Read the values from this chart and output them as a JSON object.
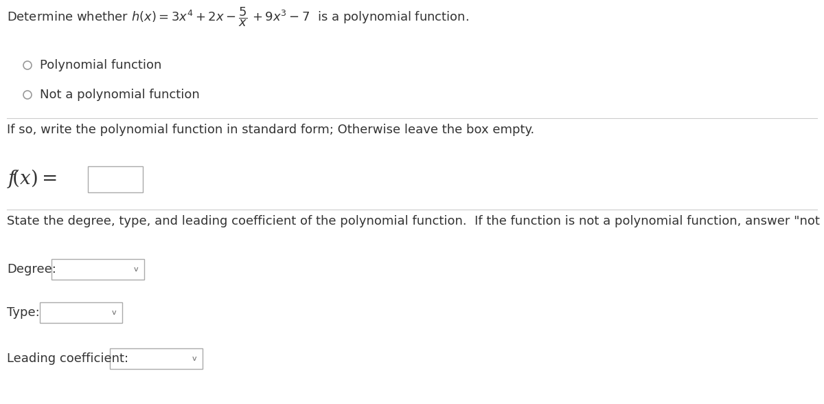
{
  "bg_color": "#ffffff",
  "font_color": "#333333",
  "font_size_main": 13,
  "font_size_fx": 20,
  "circle_color": "#999999",
  "radio_option1": "Polynomial function",
  "radio_option2": "Not a polynomial function",
  "instruction": "If so, write the polynomial function in standard form; Otherwise leave the box empty.",
  "state_instruction": "State the degree, type, and leading coefficient of the polynomial function.  If the function is not a polynomial function, answer \"not possible.\"",
  "degree_label": "Degree:",
  "type_label": "Type:",
  "leading_label": "Leading coefficient:"
}
